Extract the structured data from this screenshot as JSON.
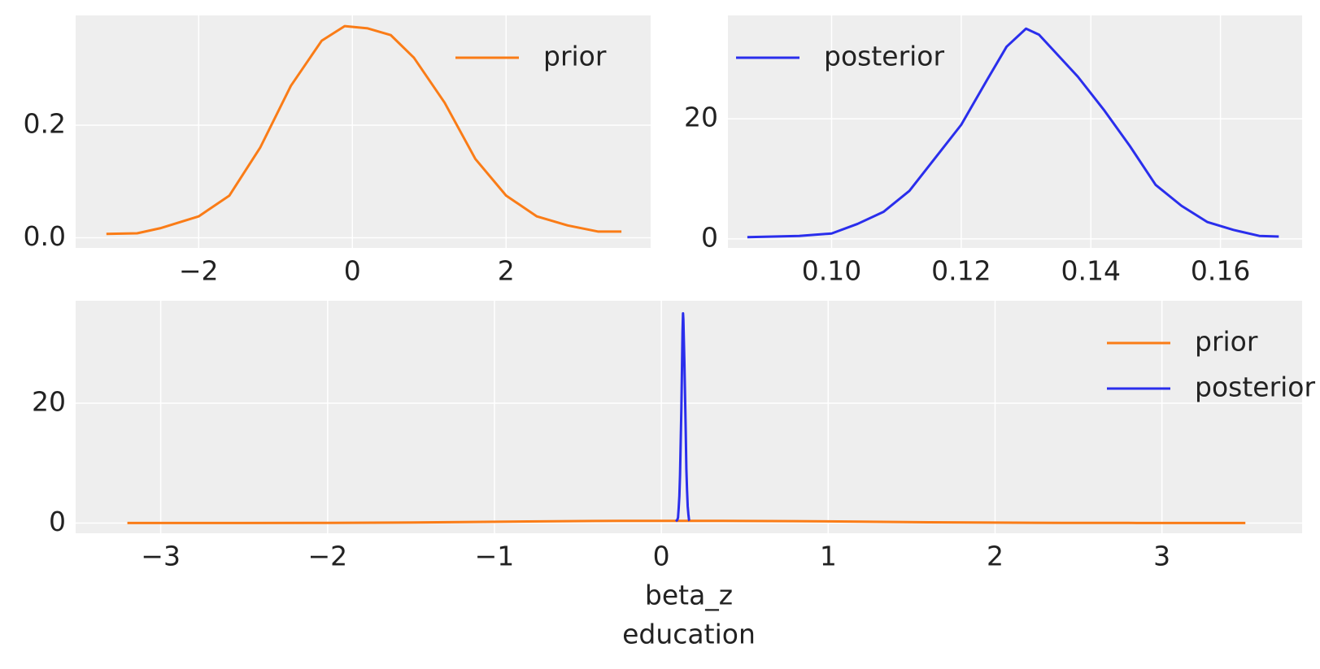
{
  "chart_data": [
    {
      "type": "line",
      "xlim": [
        -3.6,
        3.88
      ],
      "ylim": [
        -0.018,
        0.395
      ],
      "xticks": [
        {
          "value": -2,
          "label": "−2"
        },
        0,
        2
      ],
      "yticks": [
        {
          "value": 0,
          "label": "0.0"
        },
        0.2
      ],
      "grid": true,
      "legend": "upper right",
      "series": [
        {
          "name": "prior",
          "color": "#fa7c17",
          "x": [
            -3.2,
            -2.8,
            -2.5,
            -2,
            -1.6,
            -1.2,
            -0.8,
            -0.4,
            -0.1,
            0.2,
            0.5,
            0.8,
            1.2,
            1.6,
            2.0,
            2.4,
            2.8,
            3.2,
            3.5
          ],
          "values": [
            0.007,
            0.008,
            0.017,
            0.038,
            0.075,
            0.16,
            0.27,
            0.35,
            0.376,
            0.372,
            0.36,
            0.32,
            0.24,
            0.14,
            0.075,
            0.038,
            0.022,
            0.011,
            0.011
          ]
        }
      ]
    },
    {
      "type": "line",
      "xlim": [
        0.084,
        0.1726
      ],
      "ylim": [
        -1.5,
        37.2
      ],
      "xticks": [
        {
          "value": 0.1,
          "label": "0.10"
        },
        {
          "value": 0.12,
          "label": "0.12"
        },
        {
          "value": 0.14,
          "label": "0.14"
        },
        {
          "value": 0.16,
          "label": "0.16"
        }
      ],
      "yticks": [
        0,
        20
      ],
      "grid": true,
      "legend": "upper left",
      "series": [
        {
          "name": "posterior",
          "color": "#2a2eec",
          "x": [
            0.087,
            0.095,
            0.1,
            0.104,
            0.108,
            0.112,
            0.116,
            0.12,
            0.124,
            0.127,
            0.13,
            0.132,
            0.135,
            0.138,
            0.142,
            0.146,
            0.15,
            0.154,
            0.158,
            0.162,
            0.166,
            0.169
          ],
          "values": [
            0.3,
            0.5,
            0.9,
            2.5,
            4.5,
            8,
            13.5,
            19,
            26.5,
            32,
            35,
            34,
            30.5,
            27,
            21.5,
            15.5,
            9,
            5.5,
            2.8,
            1.5,
            0.5,
            0.4
          ]
        }
      ]
    },
    {
      "type": "line",
      "xlim": [
        -3.51,
        3.84
      ],
      "ylim": [
        -1.7,
        37.1
      ],
      "xticks": [
        {
          "value": -3,
          "label": "−3"
        },
        {
          "value": -2,
          "label": "−2"
        },
        {
          "value": -1,
          "label": "−1"
        },
        0,
        1,
        2,
        3
      ],
      "yticks": [
        0,
        20
      ],
      "grid": true,
      "legend": "upper right",
      "xlabel": [
        "beta_z",
        "education"
      ],
      "series": [
        {
          "name": "prior",
          "color": "#fa7c17",
          "x": [
            -3.2,
            -2.8,
            -2.5,
            -2,
            -1.6,
            -1.2,
            -0.8,
            -0.4,
            -0.1,
            0.2,
            0.5,
            0.8,
            1.2,
            1.6,
            2.0,
            2.4,
            2.8,
            3.2,
            3.5
          ],
          "values": [
            0.007,
            0.008,
            0.017,
            0.038,
            0.075,
            0.16,
            0.27,
            0.35,
            0.376,
            0.372,
            0.36,
            0.32,
            0.24,
            0.14,
            0.075,
            0.038,
            0.022,
            0.011,
            0.011
          ]
        },
        {
          "name": "posterior",
          "color": "#2a2eec",
          "x": [
            0.087,
            0.095,
            0.1,
            0.104,
            0.108,
            0.112,
            0.116,
            0.12,
            0.124,
            0.127,
            0.13,
            0.132,
            0.135,
            0.138,
            0.142,
            0.146,
            0.15,
            0.154,
            0.158,
            0.162,
            0.166,
            0.169
          ],
          "values": [
            0.3,
            0.5,
            0.9,
            2.5,
            4.5,
            8,
            13.5,
            19,
            26.5,
            32,
            35,
            34,
            30.5,
            27,
            21.5,
            15.5,
            9,
            5.5,
            2.8,
            1.5,
            0.5,
            0.4
          ]
        }
      ]
    }
  ]
}
